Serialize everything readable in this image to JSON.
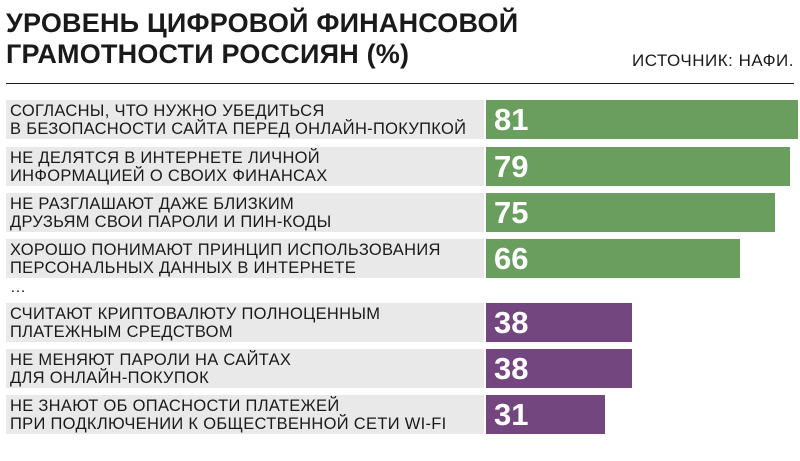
{
  "header": {
    "title_line1": "УРОВЕНЬ ЦИФРОВОЙ ФИНАНСОВОЙ",
    "title_line2": "ГРАМОТНОСТИ РОССИЯН (%)",
    "source": "ИСТОЧНИК: НАФИ."
  },
  "ellipsis": "…",
  "colors": {
    "positive": "#6a9e5f",
    "negative": "#74467f",
    "label_bg": "#e9e9e9"
  },
  "chart_data": {
    "type": "bar",
    "orientation": "horizontal",
    "title": "УРОВЕНЬ ЦИФРОВОЙ ФИНАНСОВОЙ ГРАМОТНОСТИ РОССИЯН (%)",
    "xlim": [
      0,
      100
    ],
    "grid": false,
    "items": [
      {
        "lines": [
          "СОГЛАСНЫ, ЧТО НУЖНО УБЕДИТЬСЯ",
          "В БЕЗОПАСНОСТИ САЙТА ПЕРЕД ОНЛАЙН-ПОКУПКОЙ"
        ],
        "value": 81,
        "group": "positive"
      },
      {
        "lines": [
          "НЕ ДЕЛЯТСЯ В ИНТЕРНЕТЕ ЛИЧНОЙ",
          "ИНФОРМАЦИЕЙ О СВОИХ ФИНАНСАХ"
        ],
        "value": 79,
        "group": "positive"
      },
      {
        "lines": [
          "НЕ РАЗГЛАШАЮТ ДАЖЕ БЛИЗКИМ",
          "ДРУЗЬЯМ СВОИ ПАРОЛИ И ПИН-КОДЫ"
        ],
        "value": 75,
        "group": "positive"
      },
      {
        "lines": [
          "ХОРОШО ПОНИМАЮТ ПРИНЦИП ИСПОЛЬЗОВАНИЯ",
          "ПЕРСОНАЛЬНЫХ ДАННЫХ В ИНТЕРНЕТЕ"
        ],
        "value": 66,
        "group": "positive"
      },
      {
        "lines": [
          "СЧИТАЮТ КРИПТОВАЛЮТУ ПОЛНОЦЕННЫМ",
          "ПЛАТЕЖНЫМ СРЕДСТВОМ"
        ],
        "value": 38,
        "group": "negative"
      },
      {
        "lines": [
          "НЕ МЕНЯЮТ ПАРОЛИ НА САЙТАХ",
          "ДЛЯ ОНЛАЙН-ПОКУПОК"
        ],
        "value": 38,
        "group": "negative"
      },
      {
        "lines": [
          "НЕ ЗНАЮТ ОБ ОПАСНОСТИ ПЛАТЕЖЕЙ",
          "ПРИ ПОДКЛЮЧЕНИИ К ОБЩЕСТВЕННОЙ СЕТИ WI-FI"
        ],
        "value": 31,
        "group": "negative"
      }
    ]
  }
}
